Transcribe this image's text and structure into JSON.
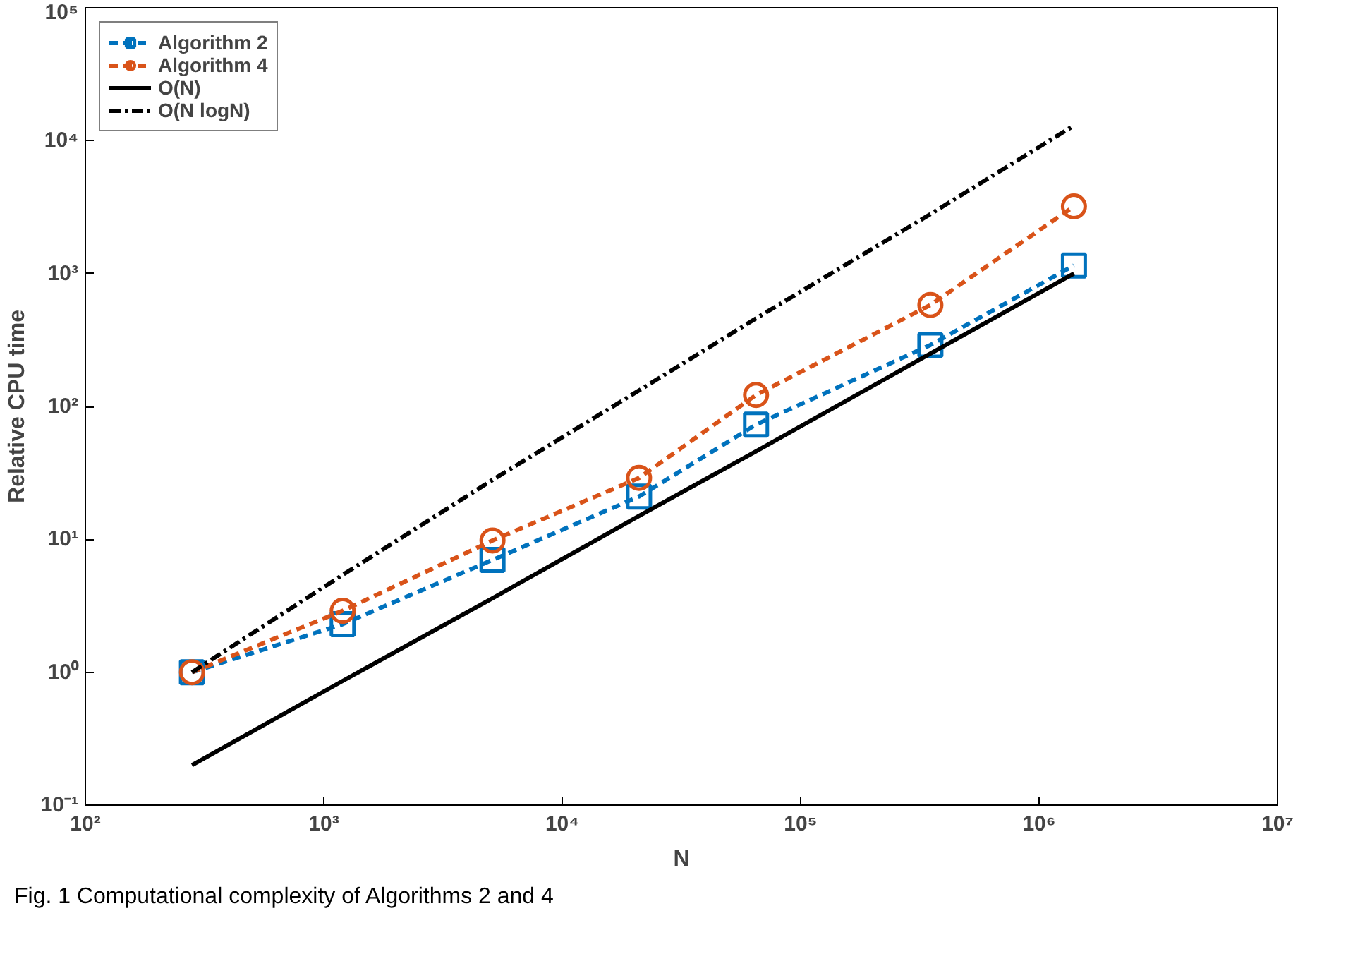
{
  "chart_data": {
    "type": "line",
    "xlabel": "N",
    "ylabel": "Relative CPU time",
    "log": "xy",
    "grid": false,
    "legend": "top left",
    "xlim": [
      100,
      10000000
    ],
    "ylim": [
      0.1,
      100000
    ],
    "xticks": [
      {
        "value": 100,
        "label": "10²"
      },
      {
        "value": 1000,
        "label": "10³"
      },
      {
        "value": 10000,
        "label": "10⁴"
      },
      {
        "value": 100000,
        "label": "10⁵"
      },
      {
        "value": 1000000,
        "label": "10⁶"
      },
      {
        "value": 10000000,
        "label": "10⁷"
      }
    ],
    "yticks": [
      {
        "value": 0.1,
        "label": "10⁻¹"
      },
      {
        "value": 1,
        "label": "10⁰"
      },
      {
        "value": 10,
        "label": "10¹"
      },
      {
        "value": 100,
        "label": "10²"
      },
      {
        "value": 1000,
        "label": "10³"
      },
      {
        "value": 10000,
        "label": "10⁴"
      },
      {
        "value": 100000,
        "label": "10⁵"
      }
    ],
    "x": [
      280,
      1200,
      5100,
      21000,
      65000,
      350000,
      1400000
    ],
    "series": [
      {
        "name": "Algorithm 2",
        "color": "#0072bd",
        "marker": "square",
        "line_style": "dashed",
        "values": [
          1,
          2.3,
          7,
          21,
          73,
          290,
          1150
        ]
      },
      {
        "name": "Algorithm 4",
        "color": "#d95319",
        "marker": "circle",
        "line_style": "dashed",
        "values": [
          1,
          2.9,
          9.8,
          29,
          122,
          580,
          3200
        ]
      },
      {
        "name": "O(N)",
        "color": "#000000",
        "marker": "none",
        "line_style": "solid",
        "values": [
          0.2,
          0.86,
          3.6,
          15,
          46,
          250,
          1000
        ]
      },
      {
        "name": "O(N logN)",
        "color": "#000000",
        "marker": "none",
        "line_style": "dashdot",
        "values": [
          1,
          5.4,
          28,
          132,
          460,
          2800,
          13000
        ]
      }
    ],
    "annotations": [
      "Fig. 1  Computational complexity of Algorithms 2 and 4"
    ]
  }
}
